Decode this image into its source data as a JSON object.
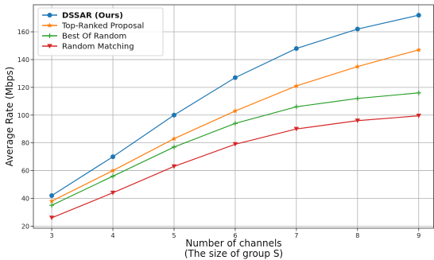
{
  "chart_data": {
    "type": "line",
    "xlabel": "Number of channels",
    "xlabel_line2": "(The size of group S)",
    "ylabel": "Average Rate (Mbps)",
    "x": [
      3,
      4,
      5,
      6,
      7,
      8,
      9
    ],
    "xlim": [
      2.7,
      9.25
    ],
    "ylim": [
      18.5,
      179.5
    ],
    "yticks": [
      20,
      40,
      60,
      80,
      100,
      120,
      140,
      160
    ],
    "grid": true,
    "legend_position": "top-left",
    "series": [
      {
        "name": "DSSAR (Ours)",
        "bold": true,
        "color": "#1f77b4",
        "marker": "circle",
        "values": [
          42,
          70,
          100,
          127,
          148,
          162,
          172
        ]
      },
      {
        "name": "Top-Ranked Proposal",
        "bold": false,
        "color": "#ff7f0e",
        "marker": "star",
        "values": [
          38,
          60,
          83,
          103,
          121,
          135,
          147
        ]
      },
      {
        "name": "Best Of Random",
        "bold": false,
        "color": "#2ca02c",
        "marker": "plus",
        "values": [
          35,
          56,
          77,
          94,
          106,
          112,
          116
        ]
      },
      {
        "name": "Random Matching",
        "bold": false,
        "color": "#d62728",
        "marker": "triangle-down",
        "values": [
          26,
          44,
          63,
          79,
          90,
          96,
          99.5
        ]
      }
    ]
  }
}
